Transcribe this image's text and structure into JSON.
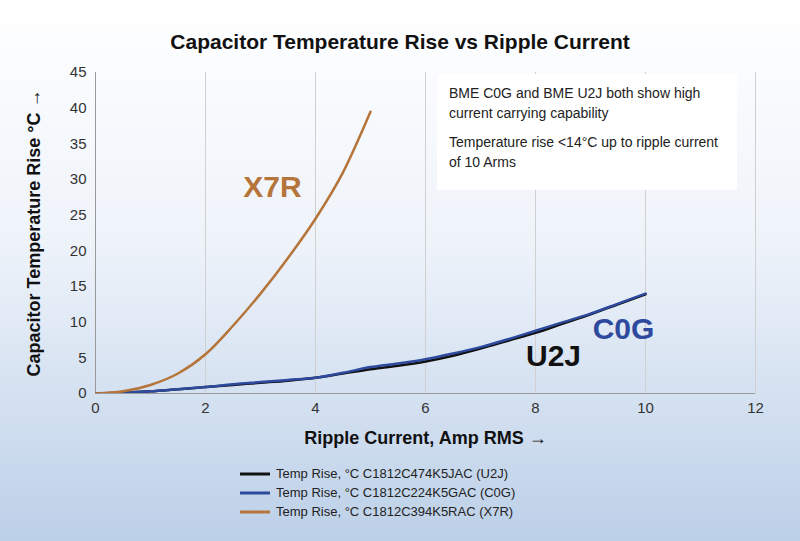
{
  "chart_data": {
    "type": "line",
    "title": "Capacitor Temperature Rise vs Ripple Current",
    "x_label": "Ripple Current, Amp RMS",
    "y_label": "Capacitor Temperature Rise °C",
    "annotations": [
      "BME C0G and BME U2J both show high current carrying capability",
      "Temperature rise <14°C up to ripple current of 10 Arms"
    ],
    "x": [
      0,
      0.5,
      1,
      1.5,
      2,
      2.5,
      3,
      3.5,
      4,
      4.5,
      5,
      5.5,
      6,
      6.5,
      7,
      7.5,
      8,
      8.5,
      9,
      9.5,
      10
    ],
    "series": [
      {
        "name": "Temp Rise, °C C1812C474K5JAC (U2J)",
        "label": "U2J",
        "color": "#111111",
        "values": [
          0,
          0.1,
          0.3,
          0.6,
          0.9,
          1.2,
          1.5,
          1.8,
          2.2,
          2.8,
          3.4,
          3.9,
          4.5,
          5.3,
          6.3,
          7.4,
          8.5,
          9.8,
          11.1,
          12.5,
          13.9
        ]
      },
      {
        "name": "Temp Rise, °C C1812C224K5GAC (C0G)",
        "label": "C0G",
        "color": "#2e4a9e",
        "values": [
          0,
          0.1,
          0.3,
          0.6,
          0.9,
          1.3,
          1.6,
          1.9,
          2.2,
          2.9,
          3.7,
          4.2,
          4.8,
          5.6,
          6.5,
          7.6,
          8.8,
          10.0,
          11.2,
          12.6,
          14.0
        ]
      },
      {
        "name": "Temp Rise, °C C1812C394K5RAC (X7R)",
        "label": "X7R",
        "color": "#b5753a",
        "values": [
          0,
          0.3,
          1.2,
          2.8,
          5.5,
          9.5,
          14,
          19,
          24.5,
          31,
          39.5,
          null,
          null,
          null,
          null,
          null,
          null,
          null,
          null,
          null,
          null
        ]
      }
    ],
    "xlim": [
      0,
      12
    ],
    "xticks": [
      0,
      2,
      4,
      6,
      8,
      10,
      12
    ],
    "ylim": [
      0,
      45
    ],
    "yticks": [
      0,
      5,
      10,
      15,
      20,
      25,
      30,
      35,
      40,
      45
    ],
    "grid": "x",
    "legend": "bottom"
  }
}
